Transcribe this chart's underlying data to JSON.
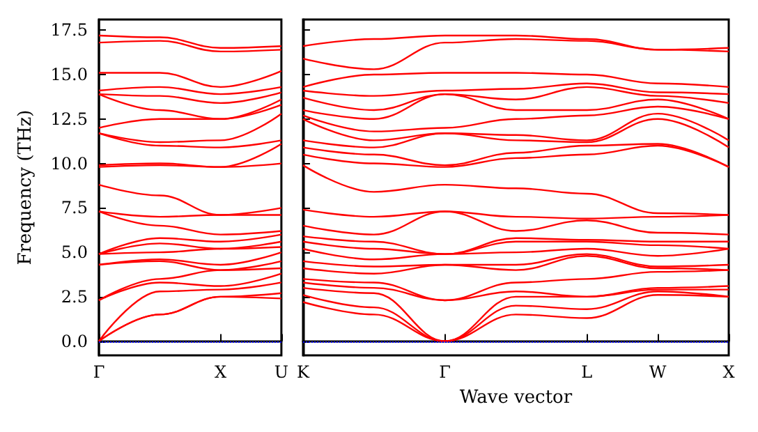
{
  "chart_data": [
    {
      "type": "line",
      "ylabel": "Frequency (THz)",
      "categories": [
        "Γ",
        null,
        "X",
        "U"
      ],
      "ylim": [
        -0.8,
        18.1
      ],
      "yticks": [
        {
          "value": 0,
          "label": "0.0"
        },
        {
          "value": 2.5,
          "label": "2.5"
        },
        {
          "value": 5,
          "label": "5.0"
        },
        {
          "value": 7.5,
          "label": "7.5"
        },
        {
          "value": 10,
          "label": "10.0"
        },
        {
          "value": 12.5,
          "label": "12.5"
        },
        {
          "value": 15,
          "label": "15.0"
        },
        {
          "value": 17.5,
          "label": "17.5"
        }
      ],
      "ref_lines": [
        {
          "axis": "y",
          "value": 0,
          "color": "#0000ff",
          "line_style": "dotted"
        }
      ],
      "series": [
        {
          "color": "#ff0000",
          "values": [
            0,
            1.5,
            2.5,
            2.4
          ]
        },
        {
          "color": "#ff0000",
          "values": [
            0,
            1.5,
            2.5,
            2.7
          ]
        },
        {
          "color": "#ff0000",
          "values": [
            0,
            2.8,
            2.9,
            3.3
          ]
        },
        {
          "color": "#ff0000",
          "values": [
            2.3,
            3.3,
            3.1,
            3.8
          ]
        },
        {
          "color": "#ff0000",
          "values": [
            2.3,
            3.5,
            4.0,
            4.1
          ]
        },
        {
          "color": "#ff0000",
          "values": [
            4.3,
            4.5,
            4.0,
            4.5
          ]
        },
        {
          "color": "#ff0000",
          "values": [
            4.3,
            4.6,
            4.3,
            5.0
          ]
        },
        {
          "color": "#ff0000",
          "values": [
            4.9,
            5.0,
            5.2,
            5.3
          ]
        },
        {
          "color": "#ff0000",
          "values": [
            4.9,
            5.5,
            5.2,
            5.6
          ]
        },
        {
          "color": "#ff0000",
          "values": [
            4.9,
            5.8,
            5.6,
            6.0
          ]
        },
        {
          "color": "#ff0000",
          "values": [
            7.3,
            6.5,
            6.0,
            6.2
          ]
        },
        {
          "color": "#ff0000",
          "values": [
            7.3,
            7.0,
            7.1,
            7.1
          ]
        },
        {
          "color": "#ff0000",
          "values": [
            8.8,
            8.2,
            7.1,
            7.5
          ]
        },
        {
          "color": "#ff0000",
          "values": [
            9.8,
            9.9,
            9.8,
            10.0
          ]
        },
        {
          "color": "#ff0000",
          "values": [
            9.9,
            10.0,
            9.8,
            11.1
          ]
        },
        {
          "color": "#ff0000",
          "values": [
            11.7,
            11.0,
            10.9,
            11.3
          ]
        },
        {
          "color": "#ff0000",
          "values": [
            11.7,
            11.2,
            11.3,
            12.8
          ]
        },
        {
          "color": "#ff0000",
          "values": [
            12.0,
            12.5,
            12.5,
            13.3
          ]
        },
        {
          "color": "#ff0000",
          "values": [
            13.9,
            13.0,
            12.5,
            13.6
          ]
        },
        {
          "color": "#ff0000",
          "values": [
            13.9,
            13.8,
            13.4,
            14.0
          ]
        },
        {
          "color": "#ff0000",
          "values": [
            14.1,
            14.3,
            13.9,
            14.3
          ]
        },
        {
          "color": "#ff0000",
          "values": [
            15.1,
            15.1,
            14.3,
            15.2
          ]
        },
        {
          "color": "#ff0000",
          "values": [
            16.8,
            16.9,
            16.3,
            16.4
          ]
        },
        {
          "color": "#ff0000",
          "values": [
            17.2,
            17.1,
            16.5,
            16.6
          ]
        }
      ]
    },
    {
      "type": "line",
      "xlabel": "Wave vector",
      "tick_labels": "x",
      "categories": [
        "K",
        null,
        "Γ",
        null,
        "L",
        "W",
        "X"
      ],
      "ylim": [
        -0.8,
        18.1
      ],
      "yticks": [
        0,
        2.5,
        5,
        7.5,
        10,
        12.5,
        15,
        17.5
      ],
      "ref_lines": [
        {
          "axis": "y",
          "value": 0,
          "color": "#0000ff",
          "line_style": "dotted"
        }
      ],
      "series": [
        {
          "color": "#ff0000",
          "values": [
            2.2,
            1.5,
            0,
            1.5,
            1.3,
            2.6,
            2.5
          ]
        },
        {
          "color": "#ff0000",
          "values": [
            2.6,
            1.9,
            0,
            2.0,
            1.8,
            2.8,
            2.5
          ]
        },
        {
          "color": "#ff0000",
          "values": [
            3.0,
            2.7,
            0,
            2.5,
            2.5,
            2.9,
            2.9
          ]
        },
        {
          "color": "#ff0000",
          "values": [
            3.3,
            3.0,
            2.3,
            2.8,
            2.5,
            3.0,
            3.1
          ]
        },
        {
          "color": "#ff0000",
          "values": [
            3.5,
            3.3,
            2.3,
            3.3,
            3.5,
            3.9,
            4.0
          ]
        },
        {
          "color": "#ff0000",
          "values": [
            4.1,
            3.8,
            4.3,
            4.0,
            4.8,
            4.1,
            4.0
          ]
        },
        {
          "color": "#ff0000",
          "values": [
            4.5,
            4.2,
            4.3,
            4.3,
            4.9,
            4.2,
            4.3
          ]
        },
        {
          "color": "#ff0000",
          "values": [
            5.2,
            4.6,
            4.9,
            5.0,
            5.2,
            4.8,
            5.2
          ]
        },
        {
          "color": "#ff0000",
          "values": [
            5.6,
            5.2,
            4.9,
            5.6,
            5.6,
            5.4,
            5.2
          ]
        },
        {
          "color": "#ff0000",
          "values": [
            5.9,
            5.6,
            4.9,
            5.8,
            5.7,
            5.6,
            5.6
          ]
        },
        {
          "color": "#ff0000",
          "values": [
            6.5,
            6.0,
            7.3,
            6.2,
            6.8,
            6.1,
            6.0
          ]
        },
        {
          "color": "#ff0000",
          "values": [
            7.4,
            7.0,
            7.3,
            7.0,
            6.9,
            7.0,
            7.1
          ]
        },
        {
          "color": "#ff0000",
          "values": [
            9.9,
            8.4,
            8.8,
            8.6,
            8.3,
            7.2,
            7.1
          ]
        },
        {
          "color": "#ff0000",
          "values": [
            10.5,
            10.0,
            9.8,
            10.3,
            10.5,
            11.0,
            9.8
          ]
        },
        {
          "color": "#ff0000",
          "values": [
            10.9,
            10.5,
            9.9,
            10.6,
            11.0,
            11.1,
            9.8
          ]
        },
        {
          "color": "#ff0000",
          "values": [
            11.3,
            10.9,
            11.7,
            11.3,
            11.2,
            12.5,
            10.9
          ]
        },
        {
          "color": "#ff0000",
          "values": [
            12.5,
            11.3,
            11.7,
            11.6,
            11.3,
            12.8,
            11.3
          ]
        },
        {
          "color": "#ff0000",
          "values": [
            12.7,
            11.8,
            12.0,
            12.5,
            12.7,
            13.2,
            12.5
          ]
        },
        {
          "color": "#ff0000",
          "values": [
            13.0,
            12.5,
            13.9,
            13.0,
            13.0,
            13.6,
            12.5
          ]
        },
        {
          "color": "#ff0000",
          "values": [
            13.7,
            13.0,
            13.9,
            13.6,
            14.3,
            13.8,
            13.4
          ]
        },
        {
          "color": "#ff0000",
          "values": [
            14.1,
            13.8,
            14.1,
            14.2,
            14.5,
            14.0,
            13.9
          ]
        },
        {
          "color": "#ff0000",
          "values": [
            14.3,
            15.0,
            15.1,
            15.1,
            15.0,
            14.5,
            14.3
          ]
        },
        {
          "color": "#ff0000",
          "values": [
            15.9,
            15.3,
            16.8,
            17.0,
            16.9,
            16.4,
            16.3
          ]
        },
        {
          "color": "#ff0000",
          "values": [
            16.6,
            17.0,
            17.2,
            17.2,
            17.0,
            16.4,
            16.5
          ]
        }
      ]
    }
  ]
}
